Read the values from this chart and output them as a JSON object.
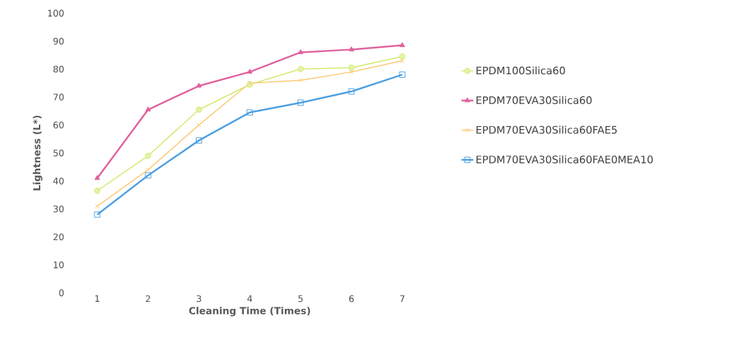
{
  "chart_data": {
    "type": "line",
    "xlabel": "Cleaning Time (Times)",
    "ylabel": "Lightness (L*)",
    "categories": [
      "1",
      "2",
      "3",
      "4",
      "5",
      "6",
      "7"
    ],
    "ylim": [
      0,
      100
    ],
    "yticks": [
      0,
      10,
      20,
      30,
      40,
      50,
      60,
      70,
      80,
      90,
      100
    ],
    "grid": false,
    "legend": "right",
    "series": [
      {
        "name": "EPDM100Silica60",
        "color": "#d2ea6c",
        "marker": "circle",
        "values": [
          36.5,
          49,
          65.5,
          74.5,
          80,
          80.5,
          84.5
        ]
      },
      {
        "name": "EPDM70EVA30Silica60",
        "color": "#e0609e",
        "marker": "triangle",
        "values": [
          41,
          65.5,
          74,
          79,
          86,
          87,
          88.5
        ]
      },
      {
        "name": "EPDM70EVA30Silica60FAE5",
        "color": "#fbc872",
        "marker": "cross",
        "values": [
          31,
          44,
          60,
          75,
          76,
          79,
          83
        ]
      },
      {
        "name": "EPDM70EVA30Silica60FAE0MEA10",
        "color": "#4c9fe0",
        "marker": "square",
        "values": [
          28,
          42,
          54.5,
          64.5,
          68,
          72,
          78
        ]
      }
    ]
  }
}
